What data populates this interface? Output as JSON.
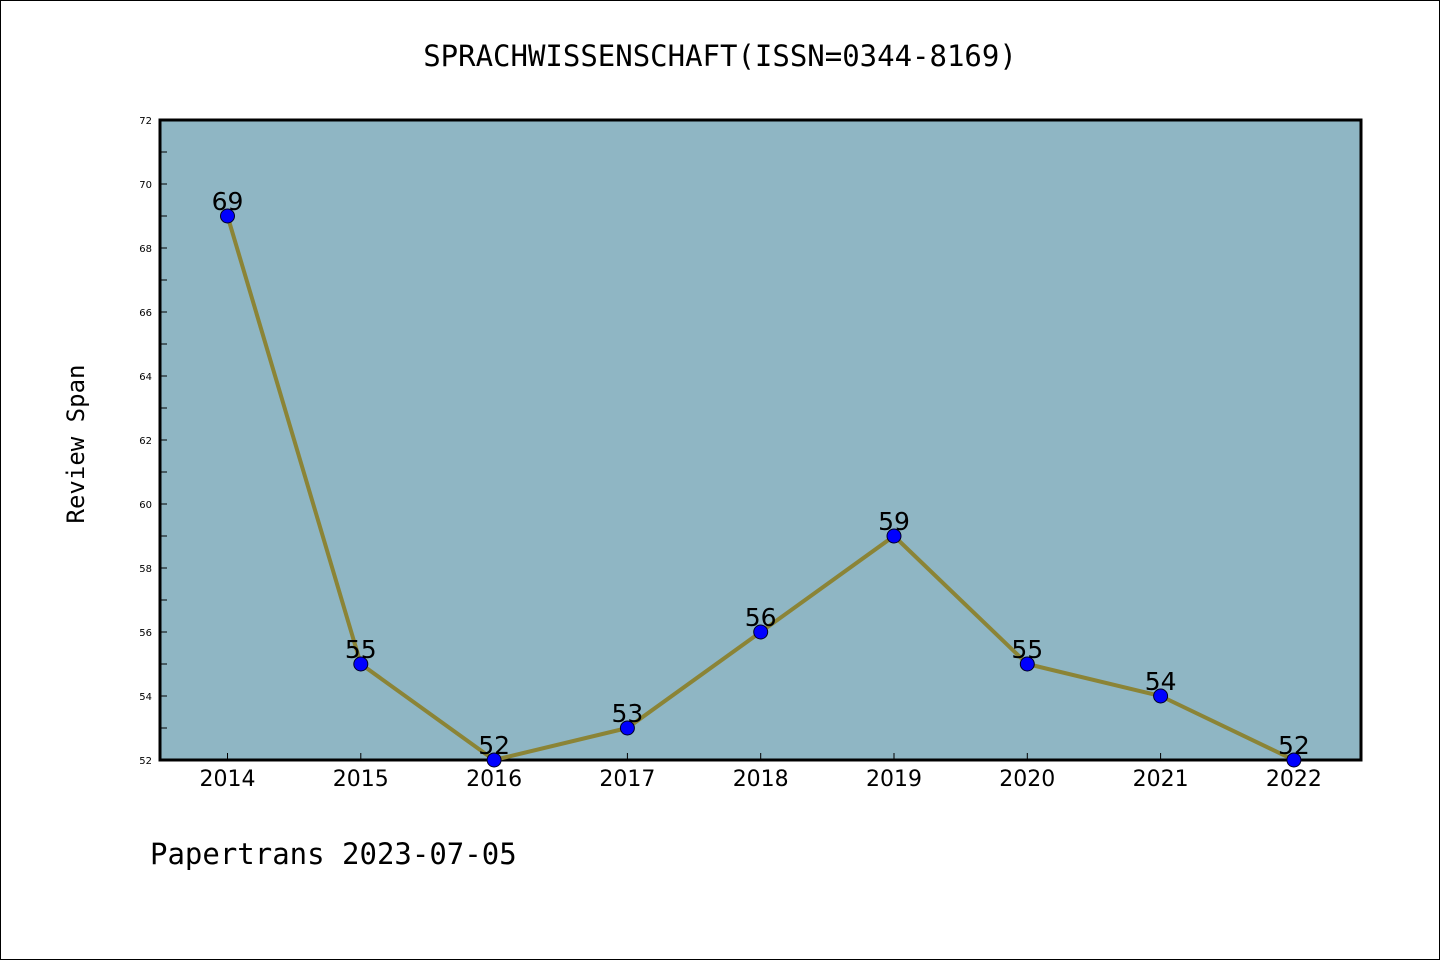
{
  "chart_data": {
    "type": "line",
    "title": "SPRACHWISSENSCHAFT(ISSN=0344-8169)",
    "xlabel": "",
    "ylabel": "Review Span",
    "categories": [
      "2014",
      "2015",
      "2016",
      "2017",
      "2018",
      "2019",
      "2020",
      "2021",
      "2022"
    ],
    "values": [
      69,
      55,
      52,
      53,
      56,
      59,
      55,
      54,
      52
    ],
    "ylim": [
      52,
      72
    ],
    "yticks": [
      "52",
      "54",
      "56",
      "58",
      "60",
      "62",
      "64",
      "66",
      "68",
      "70",
      "72"
    ],
    "grid": false,
    "legend": "none",
    "colors": {
      "plot_background": "#8fb6c4",
      "line": "#8b8436",
      "marker": "#0000ff"
    }
  },
  "footer": "Papertrans 2023-07-05"
}
